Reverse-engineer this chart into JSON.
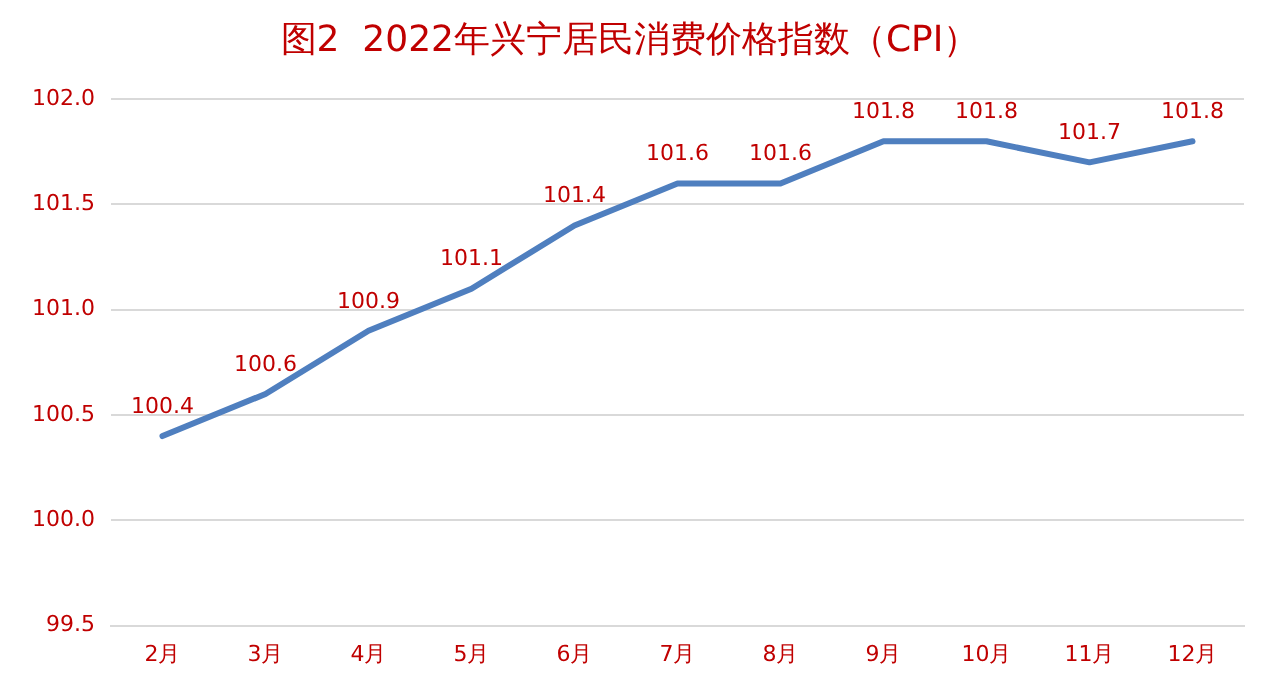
{
  "chart_data": {
    "type": "line",
    "title": "图2  2022年兴宁居民消费价格指数（CPI）",
    "categories": [
      "2月",
      "3月",
      "4月",
      "5月",
      "6月",
      "7月",
      "8月",
      "9月",
      "10月",
      "11月",
      "12月"
    ],
    "values": [
      100.4,
      100.6,
      100.9,
      101.1,
      101.4,
      101.6,
      101.6,
      101.8,
      101.8,
      101.7,
      101.8
    ],
    "color": "#4f7fbf",
    "ylim": [
      99.5,
      102.0
    ],
    "yticks": [
      {
        "value": 99.5,
        "label": "99.5"
      },
      {
        "value": 100,
        "label": "100.0"
      },
      {
        "value": 100.5,
        "label": "100.5"
      },
      {
        "value": 101,
        "label": "101.0"
      },
      {
        "value": 101.5,
        "label": "101.5"
      },
      {
        "value": 102,
        "label": "102.0"
      }
    ],
    "grid": "y",
    "legend": false,
    "marker": "none",
    "line_style": "solid",
    "data_labels": true
  }
}
